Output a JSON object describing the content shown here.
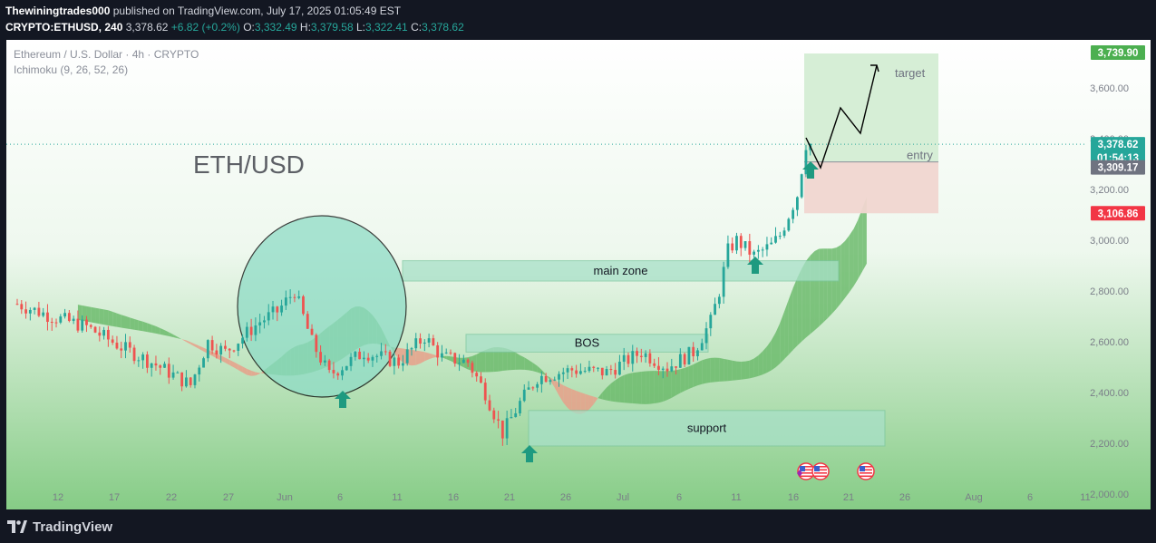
{
  "header": {
    "author": "Thewiningtrades000",
    "published_text": "published on TradingView.com, July 17, 2025 01:05:49 EST",
    "symbol": "CRYPTO:ETHUSD, 240",
    "last": "3,378.62",
    "change": "+6.82 (+0.2%)",
    "open_label": "O:",
    "open": "3,332.49",
    "high_label": "H:",
    "high": "3,379.58",
    "low_label": "L:",
    "low": "3,322.41",
    "close_label": "C:",
    "close": "3,378.62"
  },
  "overlay": {
    "instrument": "Ethereum / U.S. Dollar · 4h · CRYPTO",
    "indicator": "Ichimoku (9, 26, 52, 26)"
  },
  "footer": {
    "brand": "TradingView"
  },
  "colors": {
    "bull": "#26a69a",
    "bear": "#ef5350",
    "cloud_green": "#6cbb6c",
    "cloud_red": "#e8a08a",
    "zone": "#a8e0c8",
    "target_box": "#d4edd4",
    "stop_box": "#f0d6d0",
    "arrow": "#1e9a80",
    "price_tag": "#26a69a",
    "target_tag": "#4caf50",
    "stop_tag": "#f23645",
    "entry_tag": "#6f7380"
  },
  "chart_data": {
    "type": "candlestick",
    "title": "ETH/USD",
    "x_ticks": [
      "12",
      "17",
      "22",
      "27",
      "Jun",
      "6",
      "11",
      "16",
      "21",
      "26",
      "Jul",
      "6",
      "11",
      "16",
      "21",
      "26",
      "Aug",
      "6",
      "11"
    ],
    "y_ticks": [
      2000,
      2200,
      2400,
      2600,
      2800,
      3000,
      3200,
      3400,
      3600
    ],
    "ylim": [
      1940,
      3790
    ],
    "grid": false,
    "price_tags": [
      {
        "name": "target-price",
        "value": "3,739.90",
        "price": 3739.9
      },
      {
        "name": "last-price",
        "value": "3,378.62",
        "countdown": "01:54:13",
        "price": 3378.62
      },
      {
        "name": "entry-price",
        "value": "3,309.17",
        "price": 3309.17
      },
      {
        "name": "stop-price",
        "value": "3,106.86",
        "price": 3106.86
      }
    ],
    "annotations": [
      {
        "name": "main-zone",
        "label": "main zone",
        "low": 2840,
        "high": 2920
      },
      {
        "name": "bos-zone",
        "label": "BOS",
        "low": 2560,
        "high": 2630
      },
      {
        "name": "support-zone",
        "label": "support",
        "low": 2190,
        "high": 2330
      },
      {
        "name": "target-label",
        "label": "target"
      },
      {
        "name": "entry-label",
        "label": "entry"
      }
    ],
    "path_points": [
      {
        "x": 0,
        "p": 2750
      },
      {
        "x": 8,
        "p": 2700
      },
      {
        "x": 16,
        "p": 2660
      },
      {
        "x": 24,
        "p": 2580
      },
      {
        "x": 32,
        "p": 2510
      },
      {
        "x": 40,
        "p": 2430
      },
      {
        "x": 44,
        "p": 2600
      },
      {
        "x": 48,
        "p": 2560
      },
      {
        "x": 56,
        "p": 2680
      },
      {
        "x": 60,
        "p": 2720
      },
      {
        "x": 64,
        "p": 2800
      },
      {
        "x": 68,
        "p": 2600
      },
      {
        "x": 72,
        "p": 2470
      },
      {
        "x": 80,
        "p": 2560
      },
      {
        "x": 88,
        "p": 2520
      },
      {
        "x": 94,
        "p": 2620
      },
      {
        "x": 98,
        "p": 2540
      },
      {
        "x": 104,
        "p": 2520
      },
      {
        "x": 108,
        "p": 2400
      },
      {
        "x": 112,
        "p": 2240
      },
      {
        "x": 116,
        "p": 2360
      },
      {
        "x": 120,
        "p": 2460
      },
      {
        "x": 128,
        "p": 2490
      },
      {
        "x": 136,
        "p": 2480
      },
      {
        "x": 144,
        "p": 2560
      },
      {
        "x": 150,
        "p": 2500
      },
      {
        "x": 156,
        "p": 2560
      },
      {
        "x": 160,
        "p": 2680
      },
      {
        "x": 162,
        "p": 2800
      },
      {
        "x": 164,
        "p": 2960
      },
      {
        "x": 166,
        "p": 3000
      },
      {
        "x": 170,
        "p": 2940
      },
      {
        "x": 174,
        "p": 2980
      },
      {
        "x": 176,
        "p": 3020
      },
      {
        "x": 180,
        "p": 3180
      },
      {
        "x": 182,
        "p": 3380
      },
      {
        "x": 183,
        "p": 3379
      }
    ]
  }
}
